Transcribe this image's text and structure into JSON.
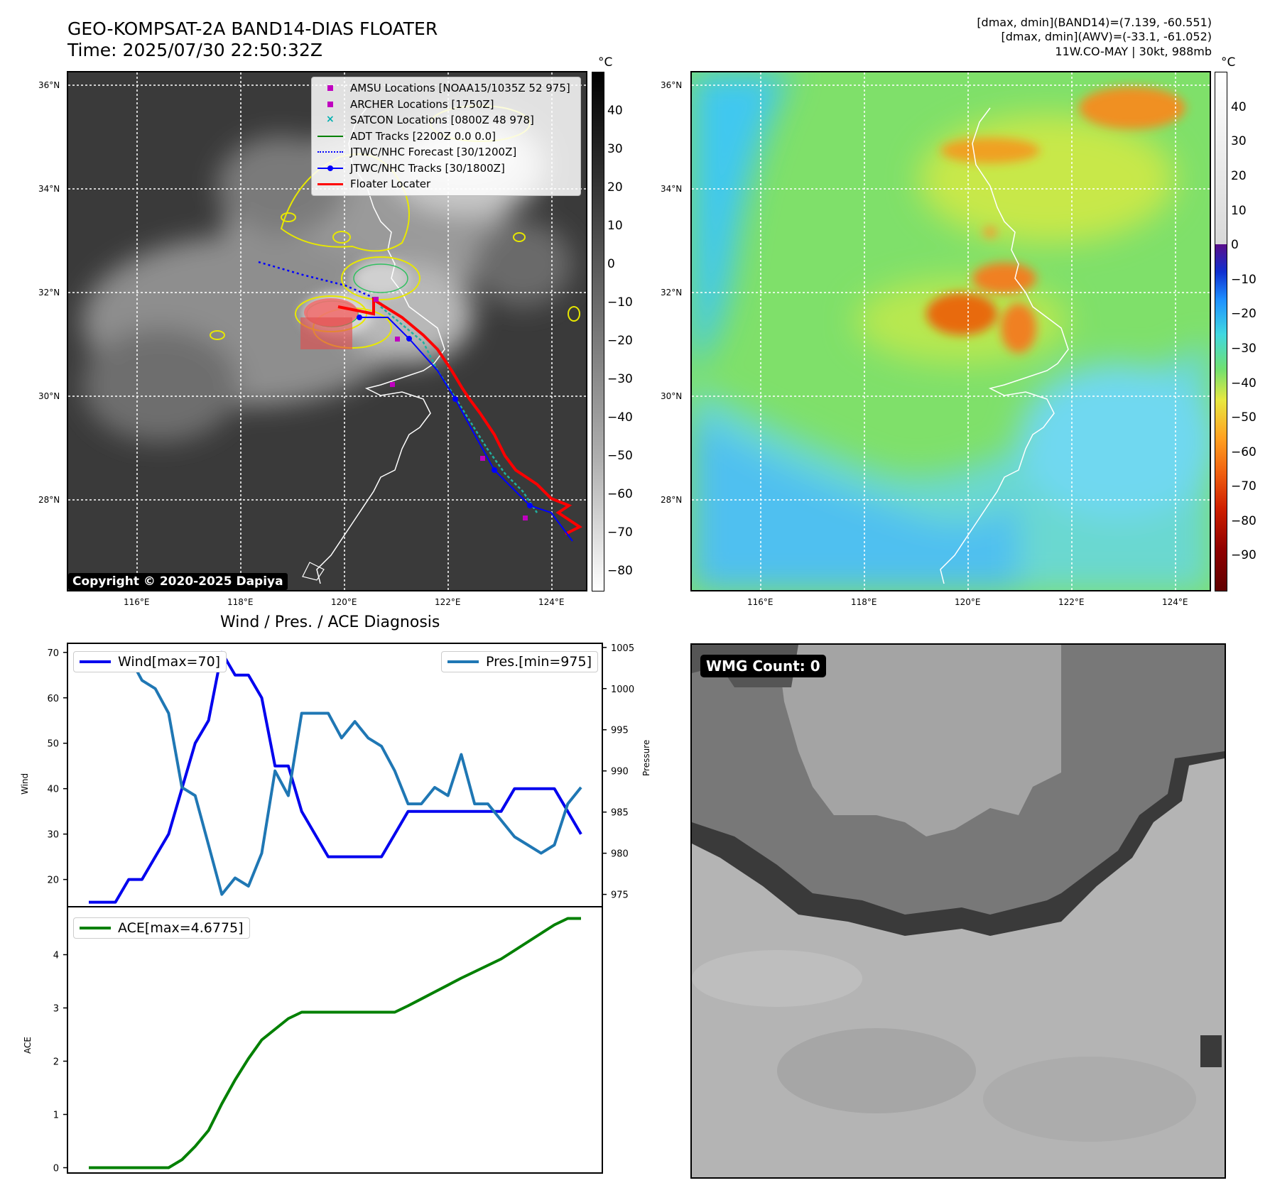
{
  "header": {
    "title_line1": "GEO-KOMPSAT-2A BAND14-DIAS FLOATER",
    "title_line2": "Time: 2025/07/30 22:50:32Z",
    "info_line1": "[dmax, dmin](BAND14)=(7.139, -60.551)",
    "info_line2": "[dmax, dmin](AWV)=(-33.1, -61.052)",
    "info_line3": "11W.CO-MAY | 30kt, 988mb"
  },
  "map_axes": {
    "lat_labels": [
      "36°N",
      "34°N",
      "32°N",
      "30°N",
      "28°N"
    ],
    "lon_labels": [
      "116°E",
      "118°E",
      "120°E",
      "122°E",
      "124°E"
    ]
  },
  "ir_panel": {
    "colorbar_unit": "°C",
    "colorbar_ticks": [
      "40",
      "30",
      "20",
      "10",
      "0",
      "−10",
      "−20",
      "−30",
      "−40",
      "−50",
      "−60",
      "−70",
      "−80"
    ],
    "legend": [
      {
        "label": "AMSU Locations [NOAA15/1035Z 52 975]",
        "symbol": "square",
        "color": "#c000c0"
      },
      {
        "label": "ARCHER Locations [1750Z]",
        "symbol": "square",
        "color": "#c000c0"
      },
      {
        "label": "SATCON Locations [0800Z 48 978]",
        "symbol": "x",
        "color": "#00b0b0"
      },
      {
        "label": "ADT Tracks [2200Z 0.0 0.0]",
        "symbol": "line",
        "color": "#008000"
      },
      {
        "label": "JTWC/NHC Forecast [30/1200Z]",
        "symbol": "dotted",
        "color": "#0000ff"
      },
      {
        "label": "JTWC/NHC Tracks [30/1800Z]",
        "symbol": "line-dot",
        "color": "#0000ff"
      },
      {
        "label": "Floater Locater",
        "symbol": "line",
        "color": "#ff0000"
      }
    ],
    "copyright": "Copyright © 2020-2025 Dapiya"
  },
  "wv_panel": {
    "colorbar_unit": "°C",
    "colorbar_ticks": [
      "40",
      "30",
      "20",
      "10",
      "0",
      "−10",
      "−20",
      "−30",
      "−40",
      "−50",
      "−60",
      "−70",
      "−80",
      "−90"
    ]
  },
  "wmg_panel": {
    "badge": "WMG Count: 0"
  },
  "chart_data": [
    {
      "type": "line",
      "title": "Wind / Pres. / ACE Diagnosis",
      "ylabel": "Wind",
      "y2label": "Pressure",
      "ylim": [
        14,
        72
      ],
      "y2lim": [
        973.5,
        1005.5
      ],
      "yticks": [
        20,
        30,
        40,
        50,
        60,
        70
      ],
      "y2ticks": [
        975,
        980,
        985,
        990,
        995,
        1000,
        1005
      ],
      "series": [
        {
          "name": "Wind[max=70]",
          "axis": "left",
          "color": "#0000ee",
          "values": [
            15,
            15,
            15,
            20,
            20,
            25,
            30,
            40,
            50,
            55,
            70,
            65,
            65,
            60,
            45,
            45,
            35,
            30,
            25,
            25,
            25,
            25,
            25,
            30,
            35,
            35,
            35,
            35,
            35,
            35,
            35,
            35,
            40,
            40,
            40,
            40,
            35,
            30
          ]
        },
        {
          "name": "Pres.[min=975]",
          "axis": "right",
          "color": "#1f77b4",
          "values": [
            1004,
            1004,
            1004,
            1004,
            1001,
            1000,
            997,
            988,
            987,
            981,
            975,
            977,
            976,
            980,
            990,
            987,
            997,
            997,
            997,
            994,
            996,
            994,
            993,
            990,
            986,
            986,
            988,
            987,
            992,
            986,
            986,
            984,
            982,
            981,
            980,
            981,
            986,
            988
          ]
        }
      ]
    },
    {
      "type": "line",
      "ylabel": "ACE",
      "ylim": [
        -0.1,
        4.9
      ],
      "yticks": [
        0,
        1,
        2,
        3,
        4
      ],
      "series": [
        {
          "name": "ACE[max=4.6775]",
          "color": "#008000",
          "values": [
            0,
            0,
            0,
            0,
            0,
            0,
            0,
            0.15,
            0.4,
            0.7,
            1.2,
            1.65,
            2.05,
            2.4,
            2.6,
            2.8,
            2.92,
            2.92,
            2.92,
            2.92,
            2.92,
            2.92,
            2.92,
            2.92,
            3.04,
            3.17,
            3.3,
            3.43,
            3.56,
            3.68,
            3.8,
            3.92,
            4.08,
            4.24,
            4.4,
            4.56,
            4.68,
            4.68
          ]
        }
      ]
    }
  ]
}
